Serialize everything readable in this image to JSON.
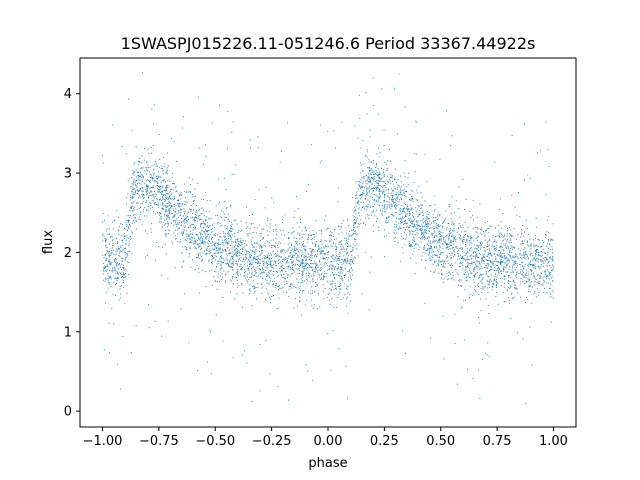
{
  "chart_data": {
    "type": "scatter",
    "title": "1SWASPJ015226.11-051246.6 Period 33367.44922s",
    "xlabel": "phase",
    "ylabel": "flux",
    "xlim": [
      -1.1,
      1.1
    ],
    "ylim": [
      -0.2,
      4.45
    ],
    "xticks": [
      -1.0,
      -0.75,
      -0.5,
      -0.25,
      0.0,
      0.25,
      0.5,
      0.75,
      1.0
    ],
    "xtick_labels": [
      "−1.00",
      "−0.75",
      "−0.50",
      "−0.25",
      "0.00",
      "0.25",
      "0.50",
      "0.75",
      "1.00"
    ],
    "yticks": [
      0,
      1,
      2,
      3,
      4
    ],
    "ytick_labels": [
      "0",
      "1",
      "2",
      "3",
      "4"
    ],
    "grid": false,
    "marker_color": "#1f77b4",
    "series": [
      {
        "phase_range": [
          -1.0,
          1.0
        ],
        "binned_mean_flux": {
          "phase": [
            -1.0,
            -0.95,
            -0.9,
            -0.86,
            -0.82,
            -0.78,
            -0.75,
            -0.7,
            -0.65,
            -0.6,
            -0.55,
            -0.5,
            -0.45,
            -0.4,
            -0.35,
            -0.3,
            -0.25,
            -0.2,
            -0.15,
            -0.1,
            -0.05,
            0.0,
            0.05,
            0.1,
            0.14,
            0.18,
            0.22,
            0.25,
            0.3,
            0.35,
            0.4,
            0.45,
            0.5,
            0.55,
            0.6,
            0.65,
            0.7,
            0.75,
            0.8,
            0.85,
            0.9,
            0.95,
            1.0
          ],
          "flux": [
            1.9,
            1.9,
            1.95,
            2.75,
            2.85,
            2.8,
            2.72,
            2.6,
            2.45,
            2.32,
            2.2,
            2.1,
            2.02,
            1.96,
            1.92,
            1.9,
            1.88,
            1.88,
            1.88,
            1.88,
            1.88,
            1.88,
            1.88,
            1.9,
            2.75,
            2.85,
            2.8,
            2.72,
            2.6,
            2.45,
            2.32,
            2.2,
            2.1,
            2.02,
            1.96,
            1.92,
            1.9,
            1.88,
            1.88,
            1.88,
            1.88,
            1.88,
            1.9
          ]
        }
      }
    ]
  }
}
